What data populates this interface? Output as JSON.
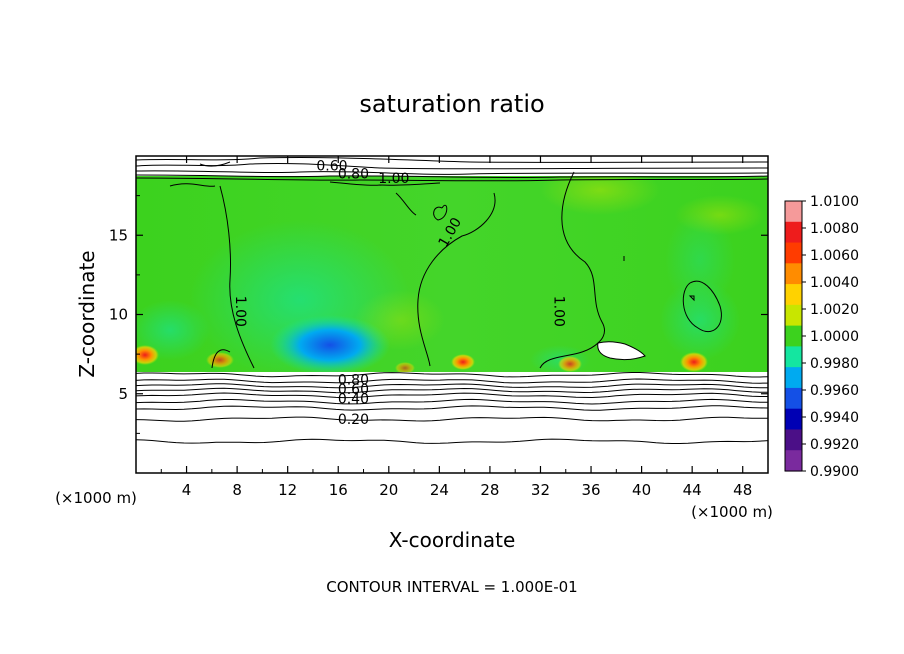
{
  "chart_data": {
    "type": "heatmap",
    "title": "saturation ratio",
    "xlabel": "X-coordinate",
    "ylabel": "Z-coordinate",
    "x_unit": "(×1000 m)",
    "y_unit": "(×1000 m)",
    "xlim": [
      0,
      50
    ],
    "ylim": [
      0,
      20
    ],
    "x_ticks": [
      "4",
      "8",
      "12",
      "16",
      "20",
      "24",
      "28",
      "32",
      "36",
      "40",
      "44",
      "48"
    ],
    "y_ticks": [
      "5",
      "10",
      "15"
    ],
    "colorbar": {
      "labels": [
        "1.0100",
        "1.0080",
        "1.0060",
        "1.0040",
        "1.0020",
        "1.0000",
        "0.9980",
        "0.9960",
        "0.9940",
        "0.9920",
        "0.9900"
      ],
      "colors": [
        "#f59a9a",
        "#ee1c1c",
        "#ff3c00",
        "#ff8c00",
        "#ffd200",
        "#c8e600",
        "#3cd21e",
        "#14e6a0",
        "#00aaf0",
        "#1450e6",
        "#0000b4",
        "#4b0f87",
        "#7a2a9e"
      ]
    },
    "contour_interval_text": "CONTOUR INTERVAL = 1.000E-01",
    "contour_labels": [
      {
        "text": "0.60",
        "x": 15.5,
        "z": 19.4
      },
      {
        "text": "0.80",
        "x": 17.2,
        "z": 18.9
      },
      {
        "text": "1.00",
        "x": 20.4,
        "z": 18.6
      },
      {
        "text": "1.00",
        "x": 24.8,
        "z": 15.2
      },
      {
        "text": "1.00",
        "x": 8.3,
        "z": 10.2
      },
      {
        "text": "1.00",
        "x": 33.5,
        "z": 10.2
      },
      {
        "text": "0.80",
        "x": 17.2,
        "z": 5.9
      },
      {
        "text": "0.60",
        "x": 17.2,
        "z": 5.3
      },
      {
        "text": "0.40",
        "x": 17.2,
        "z": 4.7
      },
      {
        "text": "0.20",
        "x": 17.2,
        "z": 3.4
      }
    ],
    "lower_contour_levels": [
      {
        "level": 0.9,
        "z": 6.2
      },
      {
        "level": 0.8,
        "z": 5.8
      },
      {
        "level": 0.7,
        "z": 5.5
      },
      {
        "level": 0.6,
        "z": 5.2
      },
      {
        "level": 0.5,
        "z": 4.9
      },
      {
        "level": 0.4,
        "z": 4.5
      },
      {
        "level": 0.3,
        "z": 4.1
      },
      {
        "level": 0.2,
        "z": 3.4
      },
      {
        "level": 0.1,
        "z": 2.0
      }
    ]
  }
}
